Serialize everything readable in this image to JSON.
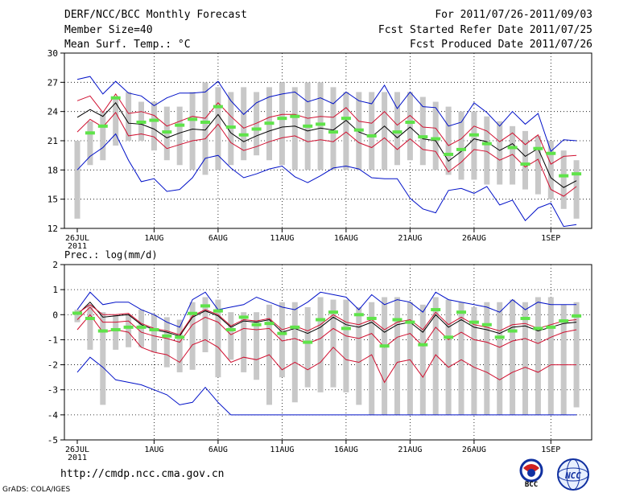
{
  "header": {
    "title": "DERF/NCC/BCC Monthly Forecast",
    "member": "Member Size=40",
    "variable": "Mean Surf. Temp.: °C",
    "period": "For 2011/07/26-2011/09/03",
    "started": "Fcst Started Refer Date 2011/07/25",
    "produced": "Fcst Produced Date 2011/07/26"
  },
  "colors": {
    "spread_bar": "#c8c8c8",
    "observed": "#5fe34a",
    "mean": "#000000",
    "inner_band": "#d01030",
    "outer_band": "#0010c8"
  },
  "chart_data": [
    {
      "type": "line",
      "name": "temperature",
      "ylabel": "Mean Surf. Temp.: °C",
      "ylim": [
        12,
        30
      ],
      "yticks": [
        "30",
        "27",
        "24",
        "21",
        "18",
        "15",
        "12"
      ],
      "xticks": [
        "26JUL",
        "1AUG",
        "6AUG",
        "11AUG",
        "16AUG",
        "21AUG",
        "26AUG",
        "1SEP"
      ],
      "xtick_days": [
        0,
        6,
        11,
        16,
        21,
        26,
        31,
        37
      ],
      "year_label": "2011",
      "days": 40,
      "bar_low": [
        13,
        18.5,
        19,
        20.5,
        21,
        21,
        20,
        19,
        18.5,
        18,
        17.5,
        18,
        18.5,
        19,
        19.5,
        19,
        18.5,
        18,
        18,
        18,
        18,
        18,
        18,
        18,
        18,
        18.5,
        19,
        18.5,
        18,
        17.5,
        17,
        17,
        16.5,
        16.5,
        16.5,
        16,
        15.5,
        15,
        14,
        13
      ],
      "bar_high": [
        21,
        23,
        24,
        25.5,
        26,
        25,
        25,
        24.5,
        24.5,
        26,
        27,
        26.5,
        26,
        26.5,
        26,
        26.5,
        27,
        26.5,
        27,
        27,
        26.5,
        26,
        26,
        26,
        26,
        26,
        26,
        25.5,
        25,
        24.5,
        24,
        24,
        23.5,
        23,
        22.5,
        22,
        21.5,
        21,
        20,
        19
      ],
      "observed": [
        null,
        21.8,
        22.5,
        25.4,
        null,
        22.9,
        23.1,
        21.9,
        22.6,
        23.2,
        22.9,
        24.5,
        22.4,
        21.6,
        22.2,
        22.8,
        23.3,
        23.5,
        22.5,
        22.7,
        21.9,
        23.3,
        22.1,
        21.5,
        null,
        21.9,
        22.9,
        21.4,
        21.2,
        19.6,
        20.1,
        21.6,
        20.7,
        null,
        20.3,
        18.6,
        20.2,
        19.7,
        17.4,
        17.6
      ],
      "series": [
        {
          "name": "outer_high",
          "values": [
            27.3,
            27.6,
            25.8,
            27.1,
            25.9,
            25.6,
            24.6,
            25.4,
            25.9,
            25.9,
            26.0,
            27.1,
            25.1,
            23.7,
            24.9,
            25.5,
            25.8,
            26.0,
            25.0,
            25.4,
            24.8,
            26.0,
            25.1,
            24.8,
            26.7,
            24.3,
            26.0,
            24.5,
            24.4,
            22.5,
            22.9,
            24.9,
            23.9,
            22.5,
            24.0,
            22.7,
            23.8,
            19.9,
            21.1,
            21.0
          ]
        },
        {
          "name": "inner_high",
          "values": [
            25.1,
            25.6,
            23.9,
            25.8,
            23.8,
            24.0,
            23.6,
            22.5,
            23.0,
            23.5,
            23.3,
            24.9,
            23.5,
            22.3,
            22.8,
            23.4,
            23.7,
            23.7,
            23.3,
            23.5,
            23.4,
            24.4,
            23.0,
            22.8,
            24.0,
            22.6,
            23.6,
            22.4,
            22.3,
            20.5,
            21.2,
            22.5,
            22.0,
            20.9,
            21.8,
            20.6,
            21.6,
            18.6,
            19.4,
            19.5
          ]
        },
        {
          "name": "mean",
          "values": [
            23.4,
            24.2,
            23.5,
            24.9,
            22.8,
            22.7,
            22.2,
            21.3,
            21.8,
            22.2,
            22.1,
            23.7,
            21.8,
            20.9,
            21.5,
            22.0,
            22.4,
            22.5,
            22.0,
            22.3,
            22.1,
            23.1,
            21.9,
            21.4,
            22.5,
            21.3,
            22.4,
            21.2,
            21.0,
            18.9,
            19.9,
            21.2,
            20.9,
            20.0,
            20.7,
            19.4,
            20.2,
            17.2,
            16.2,
            16.9
          ]
        },
        {
          "name": "inner_low",
          "values": [
            21.9,
            23.2,
            22.4,
            23.9,
            21.5,
            21.7,
            21.4,
            20.2,
            20.6,
            21.0,
            21.2,
            22.7,
            20.8,
            20.0,
            20.4,
            20.9,
            21.3,
            21.5,
            20.9,
            21.1,
            20.9,
            21.9,
            20.8,
            20.3,
            21.3,
            20.1,
            21.2,
            20.1,
            19.9,
            17.8,
            18.8,
            20.1,
            19.9,
            19.0,
            19.6,
            18.3,
            19.1,
            16.0,
            15.3,
            16.3
          ]
        },
        {
          "name": "outer_low",
          "values": [
            18.0,
            19.4,
            20.3,
            21.7,
            19.0,
            16.8,
            17.1,
            15.8,
            16.0,
            17.2,
            19.2,
            19.5,
            18.2,
            17.2,
            17.6,
            18.1,
            18.4,
            17.3,
            16.7,
            17.4,
            18.2,
            18.4,
            18.1,
            17.2,
            17.1,
            17.1,
            15.1,
            14.0,
            13.6,
            15.9,
            16.1,
            15.6,
            16.3,
            14.4,
            14.9,
            12.8,
            14.1,
            14.6,
            12.2,
            12.4
          ]
        }
      ]
    },
    {
      "type": "line",
      "name": "precipitation",
      "ylabel": "Prec.: log(mm/d)",
      "ylim": [
        -5,
        2
      ],
      "yticks": [
        "2",
        "1",
        "0",
        "-1",
        "-2",
        "-3",
        "-4",
        "-5"
      ],
      "xticks": [
        "26JUL",
        "1AUG",
        "6AUG",
        "11AUG",
        "16AUG",
        "21AUG",
        "26AUG",
        "1SEP"
      ],
      "xtick_days": [
        0,
        6,
        11,
        16,
        21,
        26,
        31,
        37
      ],
      "year_label": "2011",
      "days": 40,
      "bar_low": [
        -0.3,
        -1.4,
        -3.6,
        -1.4,
        -1.3,
        -1.3,
        -1.5,
        -2.1,
        -2.3,
        -2.2,
        -1.5,
        -2.5,
        -1.8,
        -2.3,
        -2.6,
        -3.6,
        -2.5,
        -3.5,
        -2.9,
        -3.1,
        -2.9,
        -3.1,
        -3.6,
        -4,
        -4,
        -4,
        -4,
        -4,
        -4,
        -4,
        -4,
        -4,
        -4,
        -4,
        -4,
        -4,
        -4,
        -4,
        -4,
        -3.7
      ],
      "bar_high": [
        0.2,
        0.4,
        0.1,
        0,
        0,
        0.2,
        0,
        -0.1,
        -0.2,
        0.5,
        0.7,
        0.6,
        0.1,
        0.1,
        0.1,
        0.4,
        0.5,
        0.5,
        0.3,
        0.7,
        0.6,
        0.6,
        0.3,
        0.5,
        0.7,
        0.7,
        0.5,
        0.4,
        0.7,
        0.6,
        0.5,
        0.3,
        0.5,
        0.5,
        0.6,
        0.5,
        0.7,
        0.7,
        0.4,
        0.5
      ],
      "observed": [
        0.06,
        -0.15,
        -0.65,
        -0.6,
        -0.5,
        -0.5,
        -0.6,
        -0.85,
        -0.9,
        0.05,
        0.35,
        0.15,
        -0.6,
        -0.1,
        -0.4,
        -0.35,
        -0.75,
        -0.5,
        -1.1,
        -0.2,
        0.1,
        -0.55,
        0.0,
        -0.15,
        -1.25,
        -0.2,
        -0.3,
        -1.2,
        0.2,
        -0.9,
        0.1,
        -0.3,
        -0.4,
        -0.9,
        -0.65,
        -0.15,
        -0.55,
        -0.5,
        -0.25,
        -0.05
      ],
      "series": [
        {
          "name": "outer_high",
          "values": [
            0.2,
            0.9,
            0.4,
            0.5,
            0.5,
            0.2,
            0.0,
            -0.3,
            -0.5,
            0.6,
            0.9,
            0.2,
            0.3,
            0.4,
            0.7,
            0.5,
            0.3,
            0.2,
            0.5,
            0.9,
            0.8,
            0.7,
            0.2,
            0.8,
            0.4,
            0.6,
            0.5,
            0.1,
            0.9,
            0.6,
            0.5,
            0.4,
            0.3,
            0.1,
            0.6,
            0.2,
            0.5,
            0.4,
            0.4,
            0.4
          ]
        },
        {
          "name": "mean",
          "values": [
            0.0,
            0.5,
            -0.1,
            -0.05,
            0.0,
            -0.4,
            -0.6,
            -0.7,
            -0.85,
            -0.1,
            0.15,
            -0.05,
            -0.5,
            -0.25,
            -0.3,
            -0.2,
            -0.7,
            -0.55,
            -0.75,
            -0.5,
            -0.1,
            -0.4,
            -0.5,
            -0.3,
            -0.7,
            -0.4,
            -0.3,
            -0.7,
            0.0,
            -0.5,
            -0.2,
            -0.5,
            -0.6,
            -0.75,
            -0.5,
            -0.45,
            -0.65,
            -0.5,
            -0.35,
            -0.3
          ]
        },
        {
          "name": "inner_high",
          "values": [
            0.05,
            0.4,
            0.0,
            0.0,
            0.05,
            -0.35,
            -0.55,
            -0.65,
            -0.8,
            -0.05,
            0.2,
            0.0,
            -0.45,
            -0.2,
            -0.25,
            -0.15,
            -0.6,
            -0.45,
            -0.65,
            -0.4,
            0.0,
            -0.3,
            -0.4,
            -0.2,
            -0.6,
            -0.3,
            -0.2,
            -0.6,
            0.1,
            -0.4,
            -0.1,
            -0.4,
            -0.5,
            -0.65,
            -0.4,
            -0.35,
            -0.55,
            -0.4,
            -0.25,
            -0.2
          ]
        },
        {
          "name": "inner_low",
          "values": [
            -0.2,
            0.3,
            -0.3,
            -0.3,
            -0.25,
            -0.7,
            -0.85,
            -0.95,
            -1.1,
            -0.4,
            -0.1,
            -0.3,
            -0.8,
            -0.55,
            -0.6,
            -0.55,
            -1.05,
            -0.95,
            -1.15,
            -0.95,
            -0.55,
            -0.85,
            -0.95,
            -0.75,
            -1.3,
            -0.9,
            -0.75,
            -1.25,
            -0.5,
            -1.0,
            -0.7,
            -1.0,
            -1.1,
            -1.3,
            -1.05,
            -0.95,
            -1.15,
            -0.9,
            -0.7,
            -0.6
          ]
        },
        {
          "name": "outer_low",
          "values": [
            -2.3,
            -1.7,
            -2.1,
            -2.6,
            -2.7,
            -2.8,
            -3.0,
            -3.2,
            -3.6,
            -3.5,
            -2.9,
            -3.5,
            -4.0,
            -4.0,
            -4.0,
            -4.0,
            -4.0,
            -4.0,
            -4.0,
            -4.0,
            -4.0,
            -4.0,
            -4.0,
            -4.0,
            -4.0,
            -4.0,
            -4.0,
            -4.0,
            -4.0,
            -4.0,
            -4.0,
            -4.0,
            -4.0,
            -4.0,
            -4.0,
            -4.0,
            -4.0,
            -4.0,
            -4.0,
            -4.0
          ]
        },
        {
          "name": "inner_low2",
          "values": [
            -0.6,
            0.0,
            -0.7,
            -0.6,
            -0.7,
            -1.3,
            -1.5,
            -1.6,
            -1.9,
            -1.2,
            -1.0,
            -1.3,
            -1.9,
            -1.7,
            -1.8,
            -1.6,
            -2.2,
            -1.9,
            -2.2,
            -1.9,
            -1.3,
            -1.8,
            -1.9,
            -1.6,
            -2.7,
            -1.9,
            -1.8,
            -2.5,
            -1.6,
            -2.1,
            -1.8,
            -2.1,
            -2.3,
            -2.6,
            -2.3,
            -2.1,
            -2.3,
            -2.0,
            -2.0,
            -2.0
          ]
        }
      ]
    }
  ],
  "footer": {
    "url": "http://cmdp.ncc.cma.gov.cn",
    "credit": "GrADS: COLA/IGES",
    "logo_left": "BCC",
    "logo_right": "NCC"
  }
}
